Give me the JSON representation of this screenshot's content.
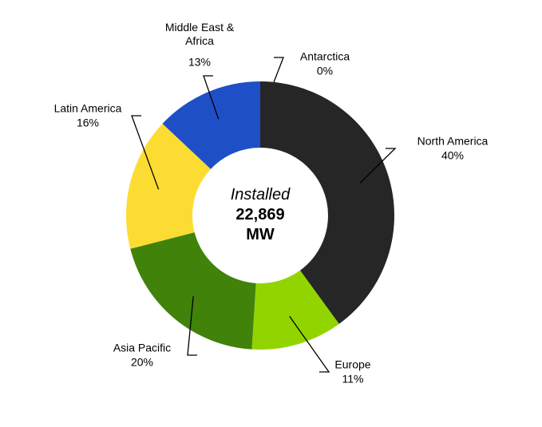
{
  "chart_data": {
    "type": "donut",
    "center_label": [
      "Installed",
      "22,869",
      "MW"
    ],
    "categories": [
      "Antarctica",
      "North America",
      "Europe",
      "Asia Pacific",
      "Latin America",
      "Middle East & Africa"
    ],
    "values": [
      0,
      40,
      11,
      20,
      16,
      13
    ],
    "value_labels": [
      "0%",
      "40%",
      "11%",
      "20%",
      "16%",
      "13%"
    ],
    "colors": [
      "#9a9a9a",
      "#262626",
      "#92d400",
      "#40820a",
      "#fcdc32",
      "#1f4fc6"
    ]
  }
}
